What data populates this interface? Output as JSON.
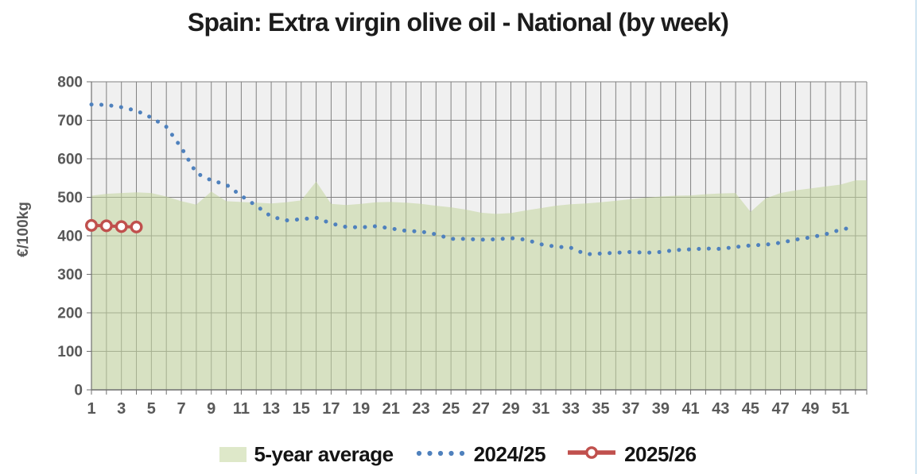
{
  "title": "Spain: Extra virgin olive oil - National (by week)",
  "legend": [
    {
      "label": "5-year average"
    },
    {
      "label": "2024/25"
    },
    {
      "label": "2025/26"
    }
  ],
  "colors": {
    "area_base": "#9BBB59",
    "area_fill": "rgba(195,214,156,0.55)",
    "blue_line": "#4F81BD",
    "red_line": "#C0504D",
    "grid": "#818181",
    "axis": "#6f6f6f",
    "tick_text": "#595959",
    "plot_bg": "#f0f0f0",
    "title_text": "#1c1c1c",
    "window_edge": "#cfe4f2"
  },
  "chart_data": {
    "type": "combo",
    "title": "Spain: Extra virgin olive oil - National (by week)",
    "xlabel": "",
    "ylabel": "€/100kg",
    "ylim": [
      0,
      800
    ],
    "ytick_step": 100,
    "grid": true,
    "legend_position": "bottom",
    "categories": [
      1,
      2,
      3,
      4,
      5,
      6,
      7,
      8,
      9,
      10,
      11,
      12,
      13,
      14,
      15,
      16,
      17,
      18,
      19,
      20,
      21,
      22,
      23,
      24,
      25,
      26,
      27,
      28,
      29,
      30,
      31,
      32,
      33,
      34,
      35,
      36,
      37,
      38,
      39,
      40,
      41,
      42,
      43,
      44,
      45,
      46,
      47,
      48,
      49,
      50,
      51,
      52
    ],
    "x_ticks_labeled": [
      1,
      3,
      5,
      7,
      9,
      11,
      13,
      15,
      17,
      19,
      21,
      23,
      25,
      27,
      29,
      31,
      33,
      35,
      37,
      39,
      41,
      43,
      45,
      47,
      49,
      51
    ],
    "series": [
      {
        "name": "5-year average",
        "type": "area",
        "color": "#9BBB59",
        "values": [
          504,
          509,
          511,
          513,
          511,
          502,
          490,
          481,
          515,
          490,
          488,
          486,
          484,
          487,
          492,
          541,
          483,
          480,
          483,
          487,
          488,
          486,
          483,
          478,
          474,
          468,
          460,
          457,
          459,
          466,
          472,
          478,
          482,
          484,
          487,
          491,
          495,
          499,
          502,
          504,
          505,
          508,
          510,
          511,
          462,
          497,
          511,
          518,
          523,
          528,
          533,
          544
        ]
      },
      {
        "name": "2024/25",
        "type": "line",
        "line_style": "dotted",
        "color": "#4F81BD",
        "values": [
          741,
          740,
          734,
          725,
          707,
          683,
          629,
          563,
          544,
          533,
          504,
          478,
          450,
          440,
          443,
          447,
          432,
          423,
          422,
          425,
          419,
          413,
          411,
          404,
          392,
          392,
          390,
          391,
          394,
          390,
          378,
          372,
          369,
          352,
          354,
          356,
          358,
          356,
          358,
          363,
          365,
          367,
          366,
          371,
          375,
          377,
          382,
          390,
          396,
          404,
          416,
          423
        ]
      },
      {
        "name": "2025/26",
        "type": "line",
        "line_style": "solid",
        "marker": "open-circle",
        "color": "#C0504D",
        "weeks": [
          1,
          2,
          3,
          4
        ],
        "values": [
          427,
          426,
          424,
          423
        ]
      }
    ]
  }
}
